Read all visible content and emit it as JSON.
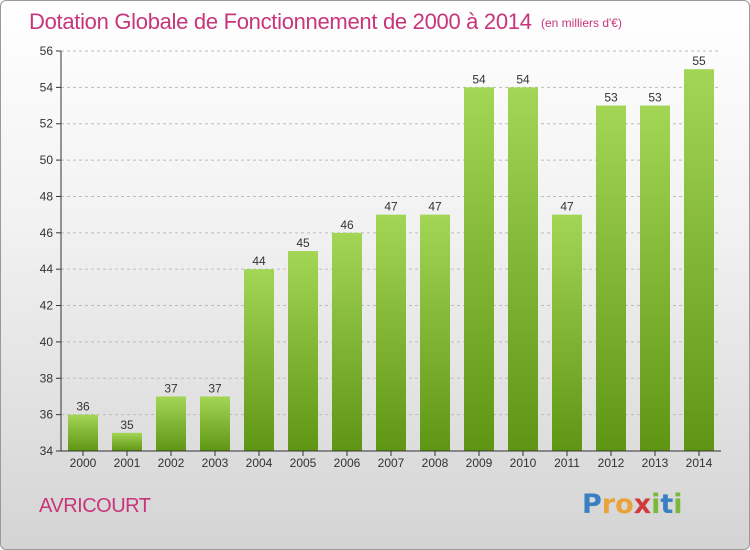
{
  "title": "Dotation Globale de Fonctionnement de 2000 à 2014",
  "subtitle": "(en milliers d'€)",
  "commune": "AVRICOURT",
  "logo": {
    "letters": [
      "P",
      "r",
      "o",
      "x",
      "i",
      "t",
      "i"
    ],
    "colors": [
      "#3a7fc2",
      "#e8a33a",
      "#e8a33a",
      "#d03a3a",
      "#7ab83a",
      "#3a7fc2",
      "#7ab83a"
    ]
  },
  "colors": {
    "title": "#c8357a",
    "bar_top": "#a3d654",
    "bar_bottom": "#5e9614",
    "axis": "#333333",
    "grid": "#bcbcbc"
  },
  "chart_data": {
    "type": "bar",
    "categories": [
      "2000",
      "2001",
      "2002",
      "2003",
      "2004",
      "2005",
      "2006",
      "2007",
      "2008",
      "2009",
      "2010",
      "2011",
      "2012",
      "2013",
      "2014"
    ],
    "values": [
      36,
      35,
      37,
      37,
      44,
      45,
      46,
      47,
      47,
      54,
      54,
      47,
      53,
      53,
      55
    ],
    "yticks": [
      34,
      36,
      38,
      40,
      42,
      44,
      46,
      48,
      50,
      52,
      54,
      56
    ],
    "ylim": [
      34,
      56
    ],
    "grid": true,
    "data_labels": true
  }
}
